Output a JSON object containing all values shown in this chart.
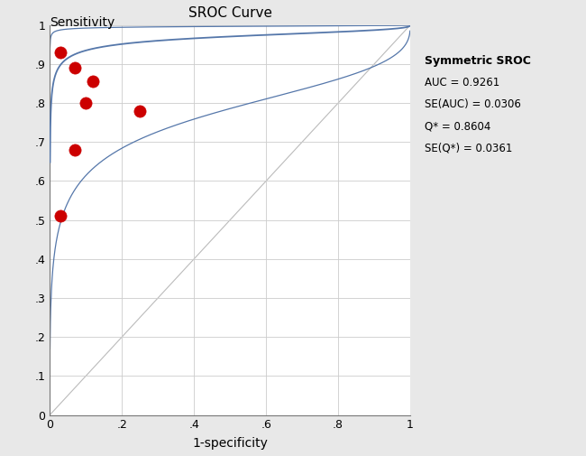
{
  "title": "SROC Curve",
  "xlabel": "1-specificity",
  "ylabel": "Sensitivity",
  "scatter_points": [
    [
      0.03,
      0.93
    ],
    [
      0.07,
      0.89
    ],
    [
      0.1,
      0.8
    ],
    [
      0.12,
      0.855
    ],
    [
      0.07,
      0.68
    ],
    [
      0.03,
      0.51
    ],
    [
      0.25,
      0.78
    ]
  ],
  "scatter_color": "#cc0000",
  "curve_color": "#5577aa",
  "diagonal_color": "#bbbbbb",
  "background_color": "#e8e8e8",
  "plot_bg_color": "#ffffff",
  "annotation_title": "Symmetric SROC",
  "annotation_lines": [
    "AUC = 0.9261",
    "SE(AUC) = 0.0306",
    "Q* = 0.8604",
    "SE(Q*) = 0.0361"
  ],
  "sroc_a": 3.5,
  "sroc_b": 0.38,
  "ci_shift_upper": 2.2,
  "ci_shift_lower": 2.2,
  "xlim": [
    0,
    1
  ],
  "ylim": [
    0,
    1
  ],
  "xticks": [
    0,
    0.2,
    0.4,
    0.6,
    0.8,
    1.0
  ],
  "yticks": [
    0,
    0.1,
    0.2,
    0.3,
    0.4,
    0.5,
    0.6,
    0.7,
    0.8,
    0.9,
    1.0
  ],
  "xtick_labels": [
    "0",
    ".2",
    ".4",
    ".6",
    ".8",
    "1"
  ],
  "ytick_labels": [
    "0",
    ".1",
    ".2",
    ".3",
    ".4",
    ".5",
    ".6",
    ".7",
    ".8",
    ".9",
    "1"
  ]
}
